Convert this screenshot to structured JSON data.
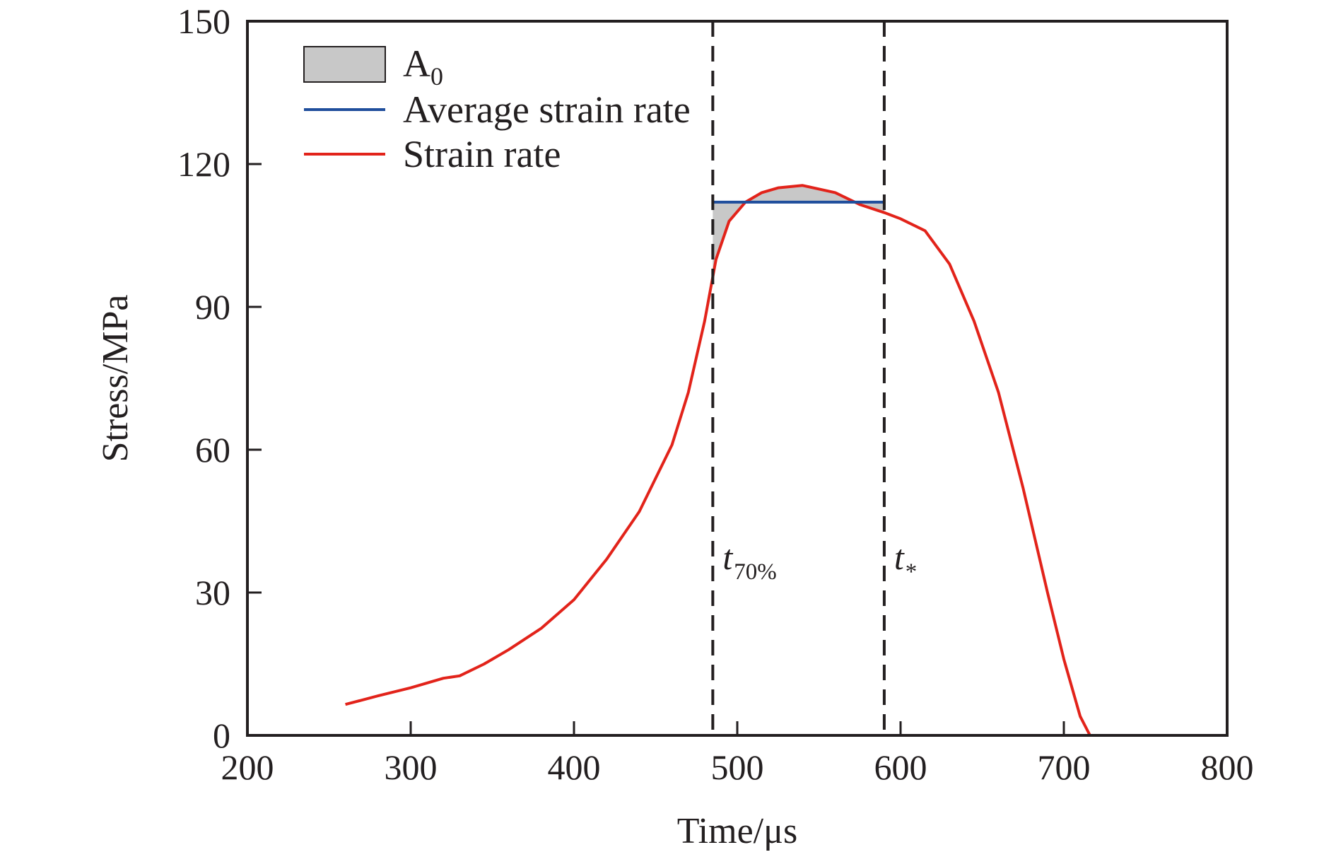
{
  "chart_data": {
    "type": "line",
    "xlabel": "Time/μs",
    "ylabel": "Stress/MPa",
    "xlim": [
      200,
      800
    ],
    "ylim": [
      0,
      150
    ],
    "xticks": [
      "200",
      "300",
      "400",
      "500",
      "600",
      "700",
      "800"
    ],
    "yticks": [
      "0",
      "30",
      "60",
      "90",
      "120",
      "150"
    ],
    "grid": false,
    "legend": {
      "placement": "top-left",
      "entries": [
        {
          "label_main": "A",
          "label_sub": "0",
          "kind": "area"
        },
        {
          "label": "Average strain rate",
          "kind": "line"
        },
        {
          "label": "Strain rate",
          "kind": "line"
        }
      ]
    },
    "colors": {
      "strain_rate": "#e2231a",
      "average_strain_rate": "#1f4e9c",
      "area_fill": "#c8c8c8",
      "marker_line": "#231f20"
    },
    "series": [
      {
        "name": "Strain rate",
        "x": [
          260,
          280,
          300,
          320,
          330,
          345,
          360,
          380,
          400,
          420,
          440,
          460,
          470,
          480,
          487,
          495,
          505,
          515,
          525,
          540,
          560,
          575,
          590,
          600,
          615,
          630,
          645,
          660,
          675,
          690,
          700,
          710,
          716
        ],
        "y": [
          6.5,
          8.3,
          10,
          12,
          12.5,
          15,
          18,
          22.5,
          28.5,
          37,
          47,
          61,
          72,
          87,
          100,
          108,
          112,
          114,
          115,
          115.5,
          114,
          111.5,
          109.8,
          108.5,
          106,
          99,
          87,
          72,
          52,
          30,
          16,
          4,
          0
        ]
      },
      {
        "name": "Average strain rate",
        "x": [
          485,
          590
        ],
        "y": [
          112,
          112
        ]
      }
    ],
    "markers": [
      {
        "x": 485,
        "label_main": "t",
        "label_sub": "70%"
      },
      {
        "x": 590,
        "label_main": "t",
        "label_sub": "*"
      }
    ]
  }
}
